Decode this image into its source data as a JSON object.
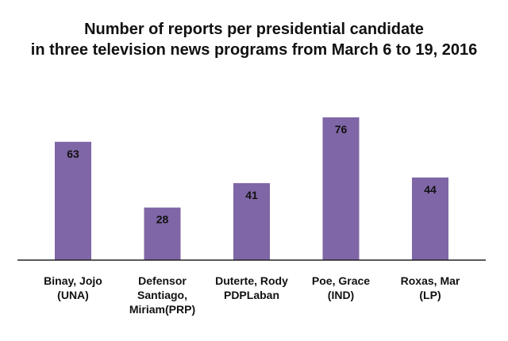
{
  "chart_data": {
    "type": "bar",
    "title_lines": [
      "Number of reports per presidential candidate",
      "in three television news programs from March 6 to 19, 2016"
    ],
    "categories": [
      [
        "Binay, Jojo",
        "(UNA)"
      ],
      [
        "Defensor",
        "Santiago,",
        "Miriam(PRP)"
      ],
      [
        "Duterte, Rody",
        "PDPLaban"
      ],
      [
        "Poe, Grace",
        "(IND)"
      ],
      [
        "Roxas, Mar",
        "(LP)"
      ]
    ],
    "values": [
      63,
      28,
      41,
      76,
      44
    ],
    "bar_color": "#7f66a6",
    "xlabel": "",
    "ylabel": "",
    "ylim": [
      0,
      76
    ],
    "grid": false,
    "legend": "none"
  }
}
